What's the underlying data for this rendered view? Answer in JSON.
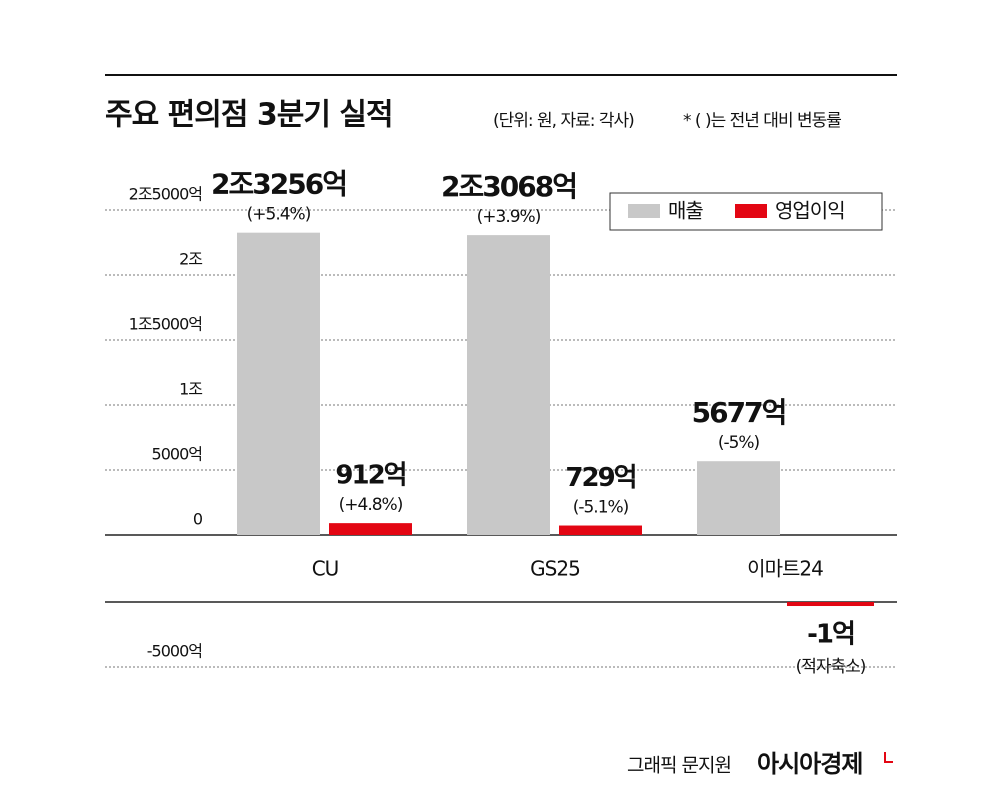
{
  "chart_data": {
    "type": "bar",
    "title": "주요 편의점 3분기 실적",
    "subtitle": "(단위: 원, 자료: 각사)",
    "note": "* ( )는 전년 대비 변동률",
    "categories": [
      "CU",
      "GS25",
      "이마트24"
    ],
    "series": [
      {
        "name": "매출",
        "color": "#c8c8c8",
        "values": [
          23256,
          23068,
          5677
        ],
        "value_labels": [
          "2조3256억",
          "2조3068억",
          "5677억"
        ],
        "change_labels": [
          "(+5.4%)",
          "(+3.9%)",
          "(-5%)"
        ]
      },
      {
        "name": "영업이익",
        "color": "#e30613",
        "values": [
          912,
          729,
          -1
        ],
        "value_labels": [
          "912억",
          "729억",
          "-1억"
        ],
        "change_labels": [
          "(+4.8%)",
          "(-5.1%)",
          "(적자축소)"
        ]
      }
    ],
    "ylim": [
      -5000,
      25000
    ],
    "yticks": [
      {
        "value": -5000,
        "label": "-5000억"
      },
      0,
      {
        "value": 5000,
        "label": "5000억"
      },
      {
        "value": 10000,
        "label": "1조"
      },
      {
        "value": 15000,
        "label": "1조5000억"
      },
      {
        "value": 20000,
        "label": "2조"
      },
      {
        "value": 25000,
        "label": "2조5000억"
      }
    ],
    "grid": true,
    "legend": "top-right",
    "credit": "그래픽 문지원",
    "source_brand": "아시아경제"
  }
}
